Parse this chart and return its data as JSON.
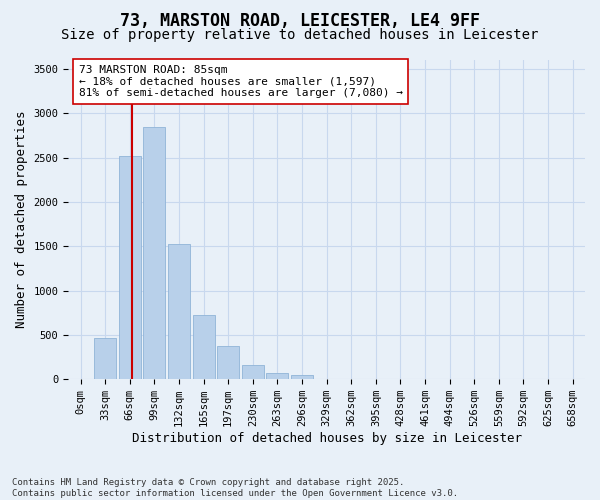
{
  "title1": "73, MARSTON ROAD, LEICESTER, LE4 9FF",
  "title2": "Size of property relative to detached houses in Leicester",
  "xlabel": "Distribution of detached houses by size in Leicester",
  "ylabel": "Number of detached properties",
  "categories": [
    "0sqm",
    "33sqm",
    "66sqm",
    "99sqm",
    "132sqm",
    "165sqm",
    "197sqm",
    "230sqm",
    "263sqm",
    "296sqm",
    "329sqm",
    "362sqm",
    "395sqm",
    "428sqm",
    "461sqm",
    "494sqm",
    "526sqm",
    "559sqm",
    "592sqm",
    "625sqm",
    "658sqm"
  ],
  "values": [
    5,
    460,
    2520,
    2840,
    1530,
    720,
    380,
    155,
    75,
    45,
    5,
    0,
    0,
    0,
    0,
    0,
    0,
    0,
    0,
    0,
    0
  ],
  "bar_color": "#b8d0ea",
  "bar_edge_color": "#90b4d8",
  "vline_color": "#cc0000",
  "annotation_title": "73 MARSTON ROAD: 85sqm",
  "annotation_line1": "← 18% of detached houses are smaller (1,597)",
  "annotation_line2": "81% of semi-detached houses are larger (7,080) →",
  "ylim_max": 3600,
  "yticks": [
    0,
    500,
    1000,
    1500,
    2000,
    2500,
    3000,
    3500
  ],
  "grid_color": "#c8d8ee",
  "bg_color": "#e8f0f8",
  "footnote1": "Contains HM Land Registry data © Crown copyright and database right 2025.",
  "footnote2": "Contains public sector information licensed under the Open Government Licence v3.0.",
  "title1_fontsize": 12,
  "title2_fontsize": 10,
  "annotation_fontsize": 8,
  "axis_label_fontsize": 9,
  "tick_fontsize": 7.5,
  "footnote_fontsize": 6.5
}
